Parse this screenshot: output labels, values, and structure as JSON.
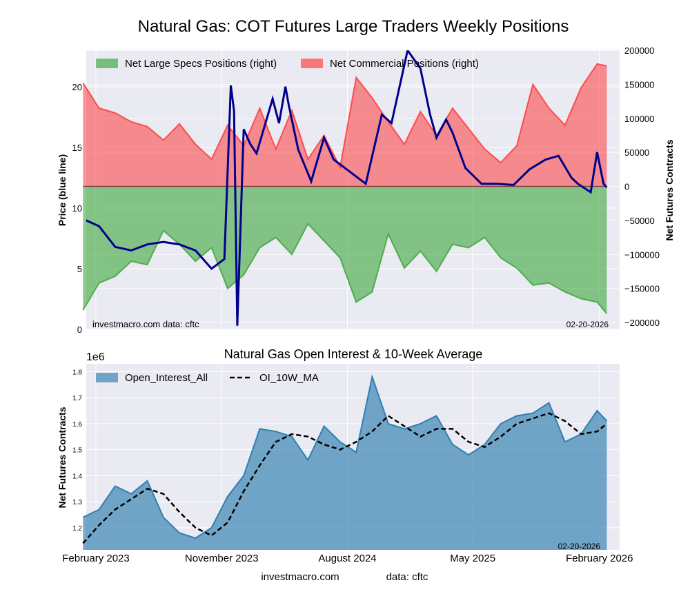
{
  "title": "Natural Gas: COT Futures Large Traders Weekly Positions",
  "footer": {
    "site": "investmacro.com",
    "source": "data: cftc"
  },
  "colors": {
    "specs": "#2ca02c",
    "commercial": "#ff2a2a",
    "price": "#00008b",
    "oi": "#3a86b4",
    "ma": "#000000",
    "plot_bg": "#eaeaf2",
    "grid": "#ffffff"
  },
  "chart_data": [
    {
      "type": "area",
      "title": "",
      "ylabel_left": "Price (blue line)",
      "ylabel_right": "Net Futures Contracts",
      "ylim_left": [
        0,
        23
      ],
      "yticks_left": [
        0,
        5,
        10,
        15,
        20
      ],
      "ylim_right": [
        -210000,
        200000
      ],
      "yticks_right": [
        -200000,
        -150000,
        -100000,
        -50000,
        0,
        50000,
        100000,
        150000,
        200000
      ],
      "xlim": [
        "2023-01-10",
        "2026-03-17"
      ],
      "x_gridlines": [
        "2023-01-31",
        "2023-11-01",
        "2024-08-01",
        "2025-05-01",
        "2026-02-01"
      ],
      "legend": {
        "placement": "top-left",
        "entries": [
          "Net Large Specs Positions (right)",
          "Net Commercial Positions (right)"
        ]
      },
      "annotations": {
        "left": "investmacro.com    data: cftc",
        "right": "02-20-2026"
      },
      "grid": true,
      "series": [
        {
          "name": "Net Large Specs Positions (right)",
          "axis": "right",
          "x": [
            "2023-01-03",
            "2023-02-07",
            "2023-03-14",
            "2023-04-18",
            "2023-05-23",
            "2023-06-27",
            "2023-08-01",
            "2023-09-05",
            "2023-10-10",
            "2023-11-14",
            "2023-12-19",
            "2024-01-23",
            "2024-02-27",
            "2024-04-02",
            "2024-05-07",
            "2024-06-11",
            "2024-07-16",
            "2024-08-20",
            "2024-09-24",
            "2024-10-29",
            "2024-12-03",
            "2025-01-07",
            "2025-02-11",
            "2025-03-18",
            "2025-04-22",
            "2025-05-27",
            "2025-07-01",
            "2025-08-05",
            "2025-09-09",
            "2025-10-14",
            "2025-11-18",
            "2025-12-23",
            "2026-01-27",
            "2026-02-17"
          ],
          "values": [
            -182000,
            -142000,
            -132000,
            -110000,
            -115000,
            -65000,
            -85000,
            -110000,
            -90000,
            -150000,
            -130000,
            -90000,
            -75000,
            -100000,
            -55000,
            -80000,
            -105000,
            -170000,
            -155000,
            -70000,
            -120000,
            -95000,
            -125000,
            -85000,
            -90000,
            -75000,
            -105000,
            -120000,
            -145000,
            -142000,
            -155000,
            -165000,
            -170000,
            -187000
          ]
        },
        {
          "name": "Net Commercial Positions (right)",
          "axis": "right",
          "x": [
            "2023-01-03",
            "2023-02-07",
            "2023-03-14",
            "2023-04-18",
            "2023-05-23",
            "2023-06-27",
            "2023-08-01",
            "2023-09-05",
            "2023-10-10",
            "2023-11-14",
            "2023-12-19",
            "2024-01-23",
            "2024-02-27",
            "2024-04-02",
            "2024-05-07",
            "2024-06-11",
            "2024-07-16",
            "2024-08-20",
            "2024-09-24",
            "2024-10-29",
            "2024-12-03",
            "2025-01-07",
            "2025-02-11",
            "2025-03-18",
            "2025-04-22",
            "2025-05-27",
            "2025-07-01",
            "2025-08-05",
            "2025-09-09",
            "2025-10-14",
            "2025-11-18",
            "2025-12-23",
            "2026-01-27",
            "2026-02-17"
          ],
          "values": [
            152000,
            115000,
            108000,
            95000,
            88000,
            68000,
            92000,
            62000,
            40000,
            90000,
            60000,
            115000,
            55000,
            112000,
            40000,
            75000,
            28000,
            160000,
            130000,
            95000,
            62000,
            110000,
            75000,
            115000,
            85000,
            55000,
            35000,
            60000,
            150000,
            115000,
            90000,
            145000,
            180000,
            177000
          ]
        },
        {
          "name": "Price",
          "axis": "left",
          "x": [
            "2023-01-03",
            "2023-02-07",
            "2023-03-14",
            "2023-04-18",
            "2023-05-23",
            "2023-06-27",
            "2023-08-01",
            "2023-09-05",
            "2023-10-10",
            "2023-11-07",
            "2023-11-21",
            "2023-11-28",
            "2023-12-05",
            "2023-12-19",
            "2024-01-02",
            "2024-01-16",
            "2024-02-20",
            "2024-03-05",
            "2024-03-19",
            "2024-03-26",
            "2024-04-16",
            "2024-05-14",
            "2024-06-11",
            "2024-07-02",
            "2024-08-06",
            "2024-09-10",
            "2024-10-15",
            "2024-11-05",
            "2024-12-10",
            "2025-01-07",
            "2025-01-28",
            "2025-02-11",
            "2025-03-04",
            "2025-03-18",
            "2025-04-15",
            "2025-05-20",
            "2025-06-24",
            "2025-07-29",
            "2025-09-02",
            "2025-10-07",
            "2025-11-04",
            "2025-12-02",
            "2025-12-16",
            "2026-01-13",
            "2026-01-27",
            "2026-02-10",
            "2026-02-17"
          ],
          "values": [
            9.1,
            8.5,
            6.8,
            6.5,
            7.0,
            7.2,
            7.0,
            6.5,
            5.0,
            5.8,
            20.1,
            18.0,
            0.3,
            16.5,
            15.3,
            14.5,
            19.0,
            17.0,
            20.0,
            18.5,
            14.8,
            12.2,
            15.8,
            14.0,
            13.0,
            12.0,
            17.7,
            17.0,
            23.0,
            21.5,
            17.7,
            15.8,
            17.3,
            16.2,
            13.3,
            12.0,
            12.0,
            11.9,
            13.2,
            14.0,
            14.3,
            12.5,
            12.0,
            11.3,
            14.6,
            12.0,
            11.7
          ]
        }
      ]
    },
    {
      "type": "area",
      "title": "Natural Gas Open Interest & 10-Week Average",
      "ylabel": "Net Futures Contracts",
      "y_multiplier": "1e6",
      "ylim": [
        1.115,
        1.83
      ],
      "yticks": [
        1.2,
        1.3,
        1.4,
        1.5,
        1.6,
        1.7,
        1.8
      ],
      "xlim": [
        "2023-01-10",
        "2026-03-17"
      ],
      "x_gridlines": [
        "2023-01-31",
        "2023-11-01",
        "2024-08-01",
        "2025-05-01",
        "2026-02-01"
      ],
      "x_tick_labels": [
        "February 2023",
        "November 2023",
        "August 2024",
        "May 2025",
        "February 2026"
      ],
      "legend": {
        "placement": "top-left",
        "entries": [
          "Open_Interest_All",
          "OI_10W_MA"
        ]
      },
      "annotations": {
        "right": "02-20-2026"
      },
      "grid": true,
      "series": [
        {
          "name": "Open_Interest_All",
          "x": [
            "2023-01-03",
            "2023-02-07",
            "2023-03-14",
            "2023-04-18",
            "2023-05-23",
            "2023-06-27",
            "2023-08-01",
            "2023-09-05",
            "2023-10-10",
            "2023-11-14",
            "2023-12-19",
            "2024-01-23",
            "2024-02-27",
            "2024-04-02",
            "2024-05-07",
            "2024-06-11",
            "2024-07-16",
            "2024-08-20",
            "2024-09-24",
            "2024-10-29",
            "2024-12-03",
            "2025-01-07",
            "2025-02-11",
            "2025-03-18",
            "2025-04-22",
            "2025-05-27",
            "2025-07-01",
            "2025-08-05",
            "2025-09-09",
            "2025-10-14",
            "2025-11-18",
            "2025-12-23",
            "2026-01-27",
            "2026-02-17"
          ],
          "values": [
            1.24,
            1.27,
            1.36,
            1.33,
            1.38,
            1.24,
            1.18,
            1.16,
            1.2,
            1.32,
            1.4,
            1.58,
            1.57,
            1.55,
            1.46,
            1.59,
            1.53,
            1.49,
            1.78,
            1.6,
            1.58,
            1.6,
            1.63,
            1.52,
            1.48,
            1.52,
            1.6,
            1.63,
            1.64,
            1.68,
            1.53,
            1.56,
            1.65,
            1.61
          ]
        },
        {
          "name": "OI_10W_MA",
          "x": [
            "2023-01-03",
            "2023-02-07",
            "2023-03-14",
            "2023-04-18",
            "2023-05-23",
            "2023-06-27",
            "2023-08-01",
            "2023-09-05",
            "2023-10-10",
            "2023-11-14",
            "2023-12-19",
            "2024-01-23",
            "2024-02-27",
            "2024-04-02",
            "2024-05-07",
            "2024-06-11",
            "2024-07-16",
            "2024-08-20",
            "2024-09-24",
            "2024-10-29",
            "2024-12-03",
            "2025-01-07",
            "2025-02-11",
            "2025-03-18",
            "2025-04-22",
            "2025-05-27",
            "2025-07-01",
            "2025-08-05",
            "2025-09-09",
            "2025-10-14",
            "2025-11-18",
            "2025-12-23",
            "2026-01-27",
            "2026-02-17"
          ],
          "values": [
            1.14,
            1.21,
            1.27,
            1.31,
            1.35,
            1.33,
            1.26,
            1.2,
            1.17,
            1.22,
            1.34,
            1.44,
            1.53,
            1.56,
            1.55,
            1.52,
            1.5,
            1.53,
            1.57,
            1.63,
            1.59,
            1.55,
            1.58,
            1.58,
            1.53,
            1.51,
            1.55,
            1.6,
            1.62,
            1.64,
            1.61,
            1.56,
            1.57,
            1.6
          ]
        }
      ]
    }
  ]
}
